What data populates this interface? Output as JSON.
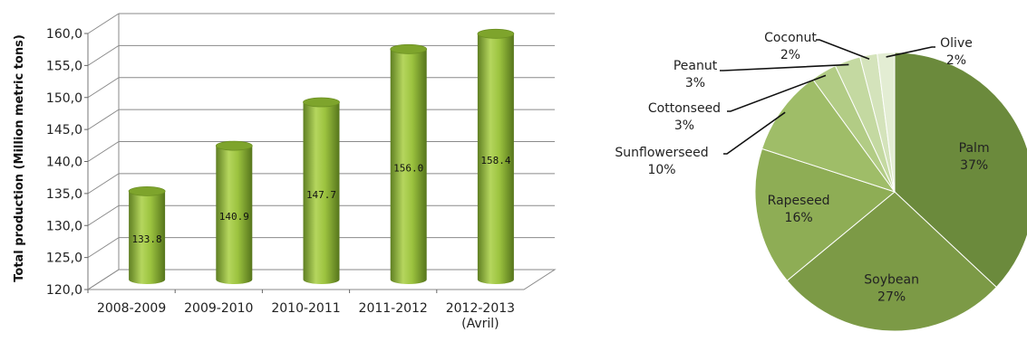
{
  "chart_data": [
    {
      "type": "bar",
      "ylabel": "Total production (Million metric tons)",
      "ylim": [
        120,
        160
      ],
      "yticks": [
        "120,0",
        "125,0",
        "130,0",
        "135,0",
        "140,0",
        "145,0",
        "150,0",
        "155,0",
        "160,0"
      ],
      "categories": [
        {
          "line1": "2008-2009",
          "line2": ""
        },
        {
          "line1": "2009-2010",
          "line2": ""
        },
        {
          "line1": "2010-2011",
          "line2": ""
        },
        {
          "line1": "2011-2012",
          "line2": ""
        },
        {
          "line1": "2012-2013",
          "line2": "(Avril)"
        }
      ],
      "values": [
        133.8,
        140.9,
        147.7,
        156.0,
        158.4
      ],
      "data_labels": [
        "133.8",
        "140.9",
        "147.7",
        "156.0",
        "158.4"
      ],
      "style": "3d-cylinder",
      "grid": true,
      "bar_color": "#8db33a"
    },
    {
      "type": "pie",
      "slices": [
        {
          "name": "Palm",
          "value": 37,
          "label": "37%",
          "color": "#6b8a3c"
        },
        {
          "name": "Soybean",
          "value": 27,
          "label": "27%",
          "color": "#7c9a46"
        },
        {
          "name": "Rapeseed",
          "value": 16,
          "label": "16%",
          "color": "#8ead55"
        },
        {
          "name": "Sunflowerseed",
          "value": 10,
          "label": "10%",
          "color": "#9fbd68"
        },
        {
          "name": "Cottonseed",
          "value": 3,
          "label": "3%",
          "color": "#b2cc85"
        },
        {
          "name": "Peanut",
          "value": 3,
          "label": "3%",
          "color": "#c4d9a1"
        },
        {
          "name": "Coconut",
          "value": 2,
          "label": "2%",
          "color": "#d4e3bb"
        },
        {
          "name": "Olive",
          "value": 2,
          "label": "2%",
          "color": "#e3edd3"
        }
      ]
    }
  ]
}
